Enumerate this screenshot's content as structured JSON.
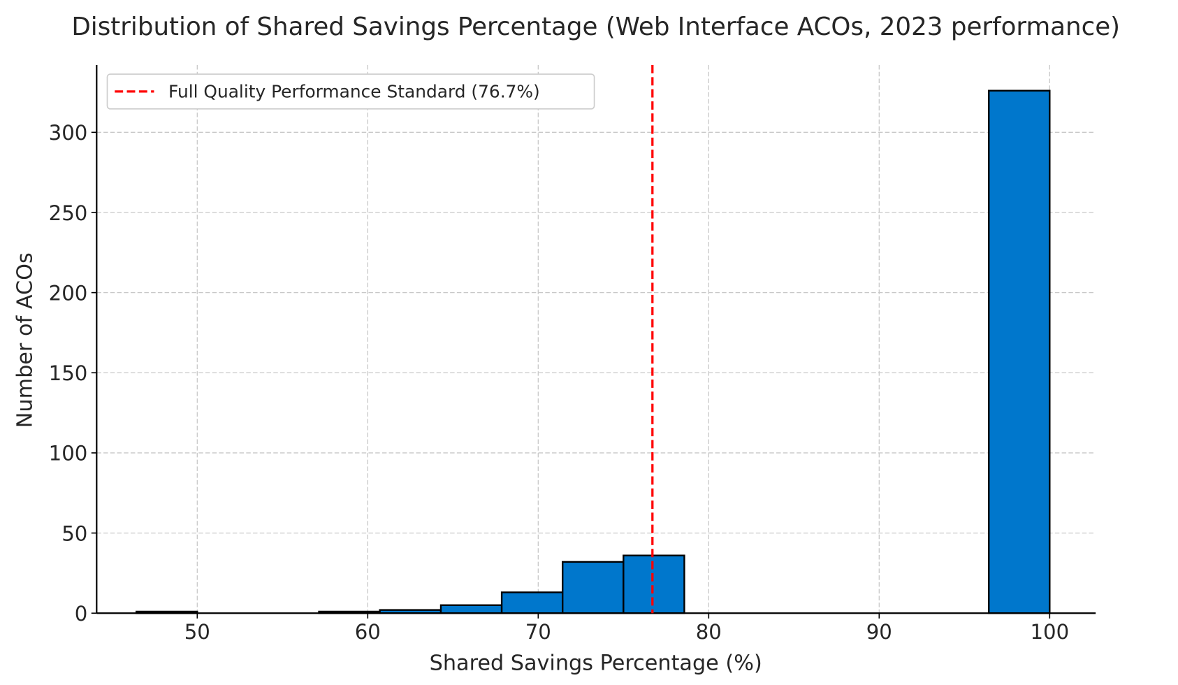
{
  "chart_data": {
    "type": "bar",
    "subtype": "histogram",
    "title": "Distribution of Shared Savings Percentage (Web Interface ACOs, 2023 performance)",
    "xlabel": "Shared Savings Percentage (%)",
    "ylabel": "Number of ACOs",
    "bin_edges": [
      46.43,
      50.0,
      53.57,
      57.14,
      60.71,
      64.29,
      67.86,
      71.43,
      75.0,
      78.57,
      82.14,
      85.71,
      89.29,
      92.86,
      96.43,
      100.0
    ],
    "counts": [
      1,
      0,
      0,
      1,
      2,
      5,
      13,
      32,
      36,
      0,
      0,
      0,
      0,
      0,
      326
    ],
    "xlim": [
      44.1,
      102.7
    ],
    "ylim": [
      0,
      342
    ],
    "xticks": [
      50,
      60,
      70,
      80,
      90,
      100
    ],
    "yticks": [
      0,
      50,
      100,
      150,
      200,
      250,
      300
    ],
    "grid": true,
    "bar_color": "#0077cc",
    "edge_color": "#000000",
    "reference_line": {
      "x": 76.7,
      "label": "Full Quality Performance Standard (76.7%)",
      "color": "#ff0000",
      "style": "dashed"
    },
    "legend_position": "top-left"
  }
}
